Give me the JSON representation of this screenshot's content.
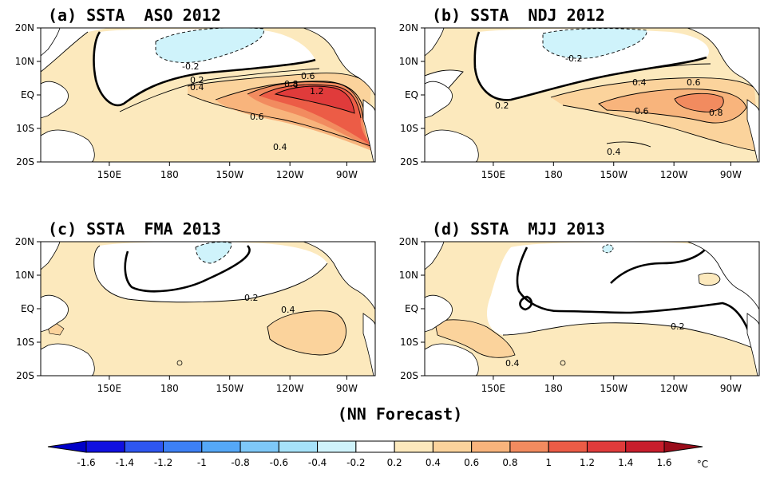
{
  "figure": {
    "footer": "(NN Forecast)",
    "unit": "°C"
  },
  "lat_ticks": [
    "20N",
    "10N",
    "EQ",
    "10S",
    "20S"
  ],
  "lon_ticks": [
    "150E",
    "180",
    "150W",
    "120W",
    "90W"
  ],
  "panels": [
    {
      "title": "(a) SSTA  ASO 2012",
      "labels": [
        "-0.2",
        "0.2",
        "0.4",
        "0.6",
        "0.8",
        "1",
        "1.2",
        "0.6",
        "0.4"
      ]
    },
    {
      "title": "(b) SSTA  NDJ 2012",
      "labels": [
        "-0.2",
        "0.4",
        "0.2",
        "0.6",
        "0.6",
        "0.8",
        "0.4"
      ]
    },
    {
      "title": "(c) SSTA  FMA 2013",
      "labels": [
        "0.2",
        "0.4"
      ]
    },
    {
      "title": "(d) SSTA  MJJ 2013",
      "labels": [
        "0.2",
        "0.4"
      ]
    }
  ],
  "colorbar": {
    "ticks": [
      "-1.6",
      "-1.4",
      "-1.2",
      "-1",
      "-0.8",
      "-0.6",
      "-0.4",
      "-0.2",
      "0.2",
      "0.4",
      "0.6",
      "0.8",
      "1",
      "1.2",
      "1.4",
      "1.6"
    ],
    "colors": [
      "#1010e0",
      "#2e56f0",
      "#3d80f5",
      "#55a8f7",
      "#7ec8f8",
      "#a6e2f9",
      "#cff3fb",
      "#ffffff",
      "#fce9bd",
      "#fbd39c",
      "#f8b47c",
      "#f28b5f",
      "#ec5c46",
      "#e03b3b",
      "#c81e2c"
    ],
    "low_color": "#0000c8",
    "high_color": "#9a0c1a"
  }
}
